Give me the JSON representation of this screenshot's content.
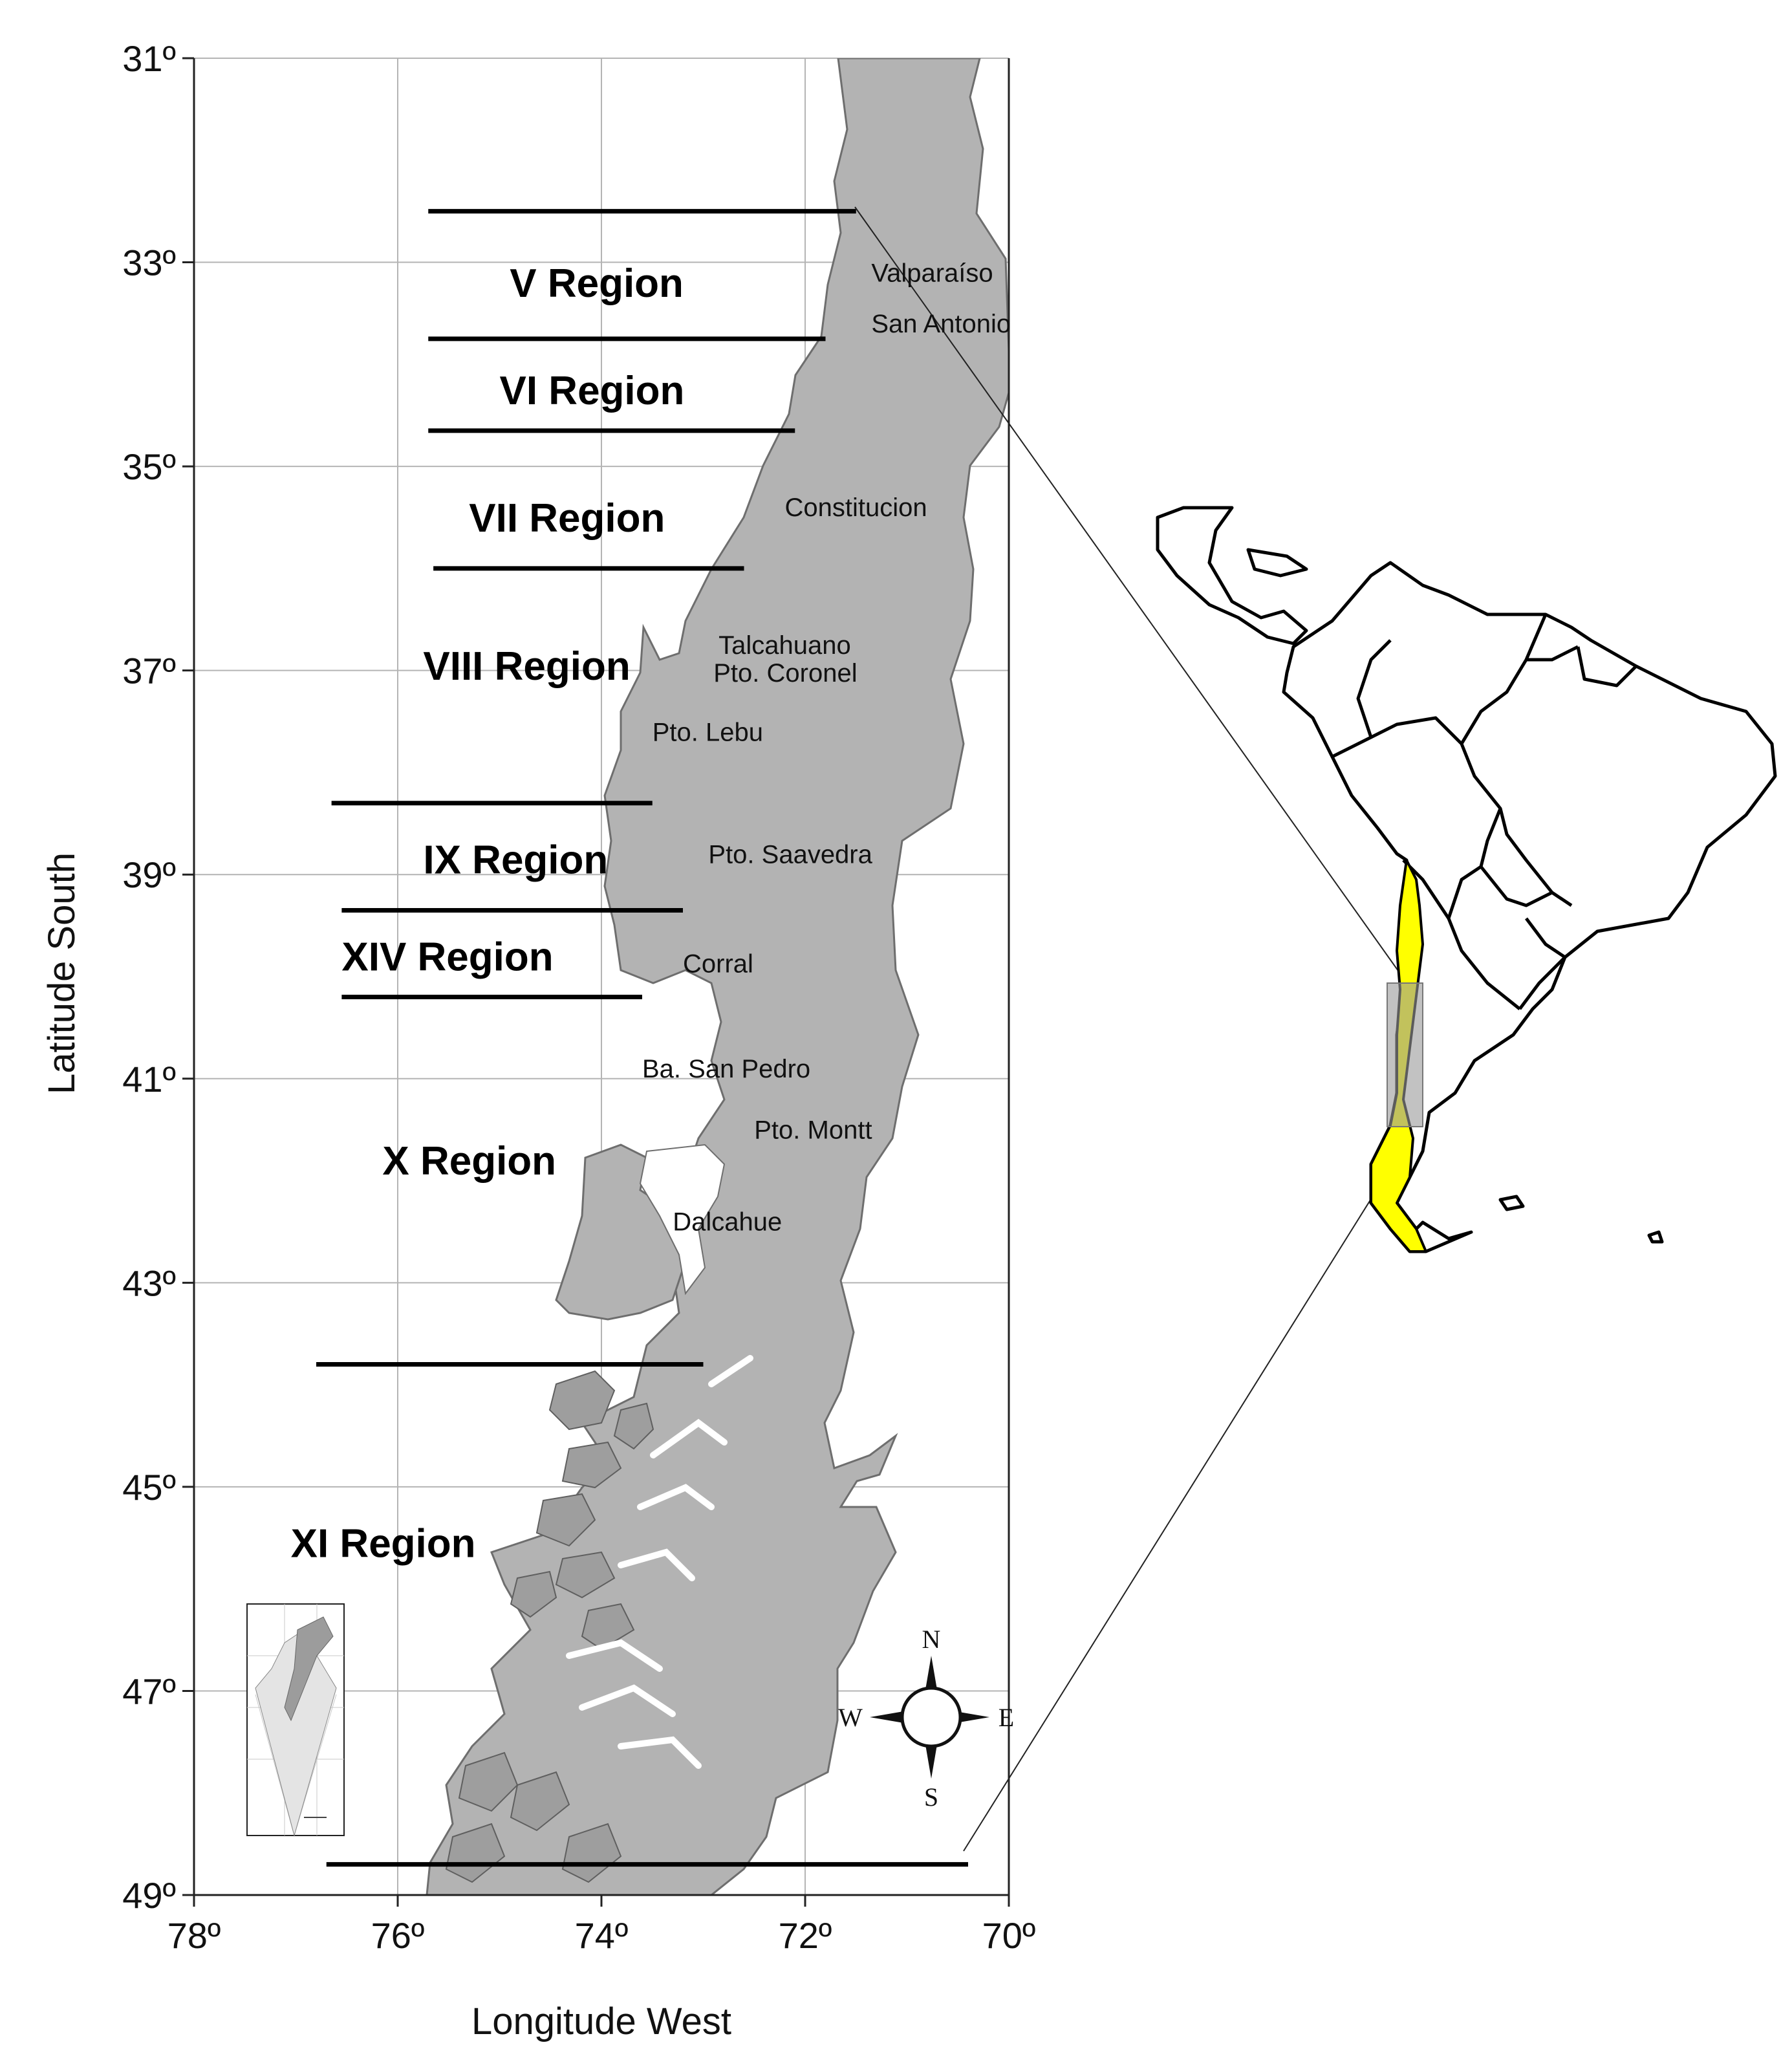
{
  "map": {
    "x_axis": {
      "title": "Longitude West",
      "ticks": [
        {
          "value": 78,
          "label": "78º"
        },
        {
          "value": 76,
          "label": "76º"
        },
        {
          "value": 74,
          "label": "74º"
        },
        {
          "value": 72,
          "label": "72º"
        },
        {
          "value": 70,
          "label": "70º"
        }
      ],
      "range": [
        78,
        70
      ]
    },
    "y_axis": {
      "title": "Latitude South",
      "ticks": [
        {
          "value": 31,
          "label": "31º"
        },
        {
          "value": 33,
          "label": "33º"
        },
        {
          "value": 35,
          "label": "35º"
        },
        {
          "value": 37,
          "label": "37º"
        },
        {
          "value": 39,
          "label": "39º"
        },
        {
          "value": 41,
          "label": "41º"
        },
        {
          "value": 43,
          "label": "43º"
        },
        {
          "value": 45,
          "label": "45º"
        },
        {
          "value": 47,
          "label": "47º"
        },
        {
          "value": 49,
          "label": "49º"
        }
      ],
      "range": [
        31,
        49
      ]
    },
    "grid": true,
    "regions": [
      {
        "name": "V Region",
        "lat": 33.2,
        "lon": 74.9
      },
      {
        "name": "VI Region",
        "lat": 34.25,
        "lon": 75.0
      },
      {
        "name": "VII Region",
        "lat": 35.5,
        "lon": 75.3
      },
      {
        "name": "VIII Region",
        "lat": 36.95,
        "lon": 75.75
      },
      {
        "name": "IX Region",
        "lat": 38.85,
        "lon": 75.75
      },
      {
        "name": "XIV Region",
        "lat": 39.8,
        "lon": 76.55
      },
      {
        "name": "X Region",
        "lat": 41.8,
        "lon": 76.15
      },
      {
        "name": "XI Region",
        "lat": 45.55,
        "lon": 77.05
      }
    ],
    "region_boundaries": [
      {
        "lat": 32.5,
        "lon_from": 75.7,
        "lon_to": 71.5
      },
      {
        "lat": 33.75,
        "lon_from": 75.7,
        "lon_to": 71.8
      },
      {
        "lat": 34.65,
        "lon_from": 75.7,
        "lon_to": 72.1
      },
      {
        "lat": 36.0,
        "lon_from": 75.65,
        "lon_to": 72.6
      },
      {
        "lat": 38.3,
        "lon_from": 76.65,
        "lon_to": 73.5
      },
      {
        "lat": 39.35,
        "lon_from": 76.55,
        "lon_to": 73.2
      },
      {
        "lat": 40.2,
        "lon_from": 76.55,
        "lon_to": 73.6
      },
      {
        "lat": 43.8,
        "lon_from": 76.8,
        "lon_to": 73.0
      },
      {
        "lat": 48.7,
        "lon_from": 76.7,
        "lon_to": 70.4
      }
    ],
    "towns": [
      {
        "name": "Valparaíso",
        "lat": 33.1,
        "lon": 71.35
      },
      {
        "name": "San Antonio",
        "lat": 33.6,
        "lon": 71.35
      },
      {
        "name": "Constitucion",
        "lat": 35.4,
        "lon": 72.2
      },
      {
        "name": "Talcahuano",
        "lat": 36.75,
        "lon": 72.85
      },
      {
        "name": "Pto. Coronel",
        "lat": 37.02,
        "lon": 72.9
      },
      {
        "name": "Pto. Lebu",
        "lat": 37.6,
        "lon": 73.5
      },
      {
        "name": "Pto. Saavedra",
        "lat": 38.8,
        "lon": 72.95
      },
      {
        "name": "Corral",
        "lat": 39.87,
        "lon": 73.2
      },
      {
        "name": "Ba. San Pedro",
        "lat": 40.9,
        "lon": 73.6
      },
      {
        "name": "Pto. Montt",
        "lat": 41.5,
        "lon": 72.5
      },
      {
        "name": "Dalcahue",
        "lat": 42.4,
        "lon": 73.3
      }
    ],
    "compass": {
      "north": "N",
      "south": "S",
      "east": "E",
      "west": "W"
    },
    "colors": {
      "land": "#b3b3b3",
      "land_outline": "#6e6e6e",
      "grid": "#b4b4b4",
      "highlight": "#ffff00",
      "selection_box": "#9a9a9a"
    },
    "icons": [
      "compass-rose-icon",
      "antarctica-inset-icon",
      "south-america-locator-icon"
    ]
  }
}
